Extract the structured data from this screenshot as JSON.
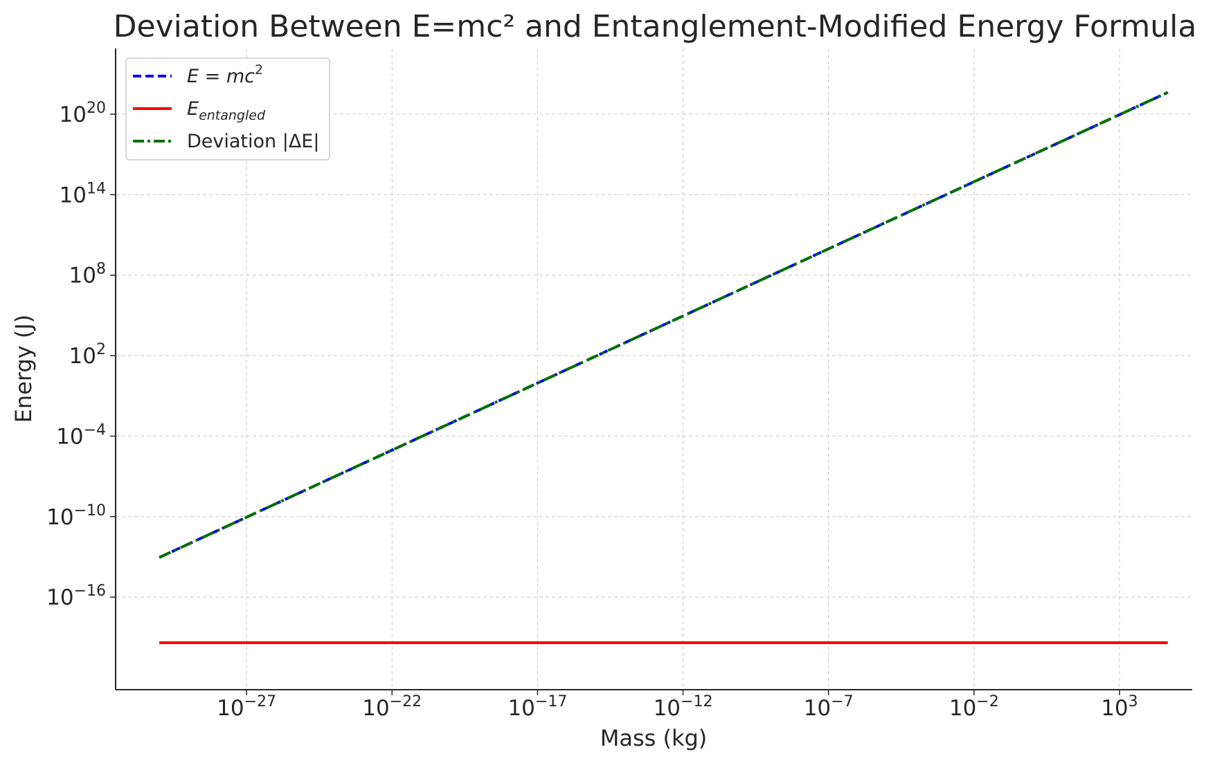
{
  "chart_data": {
    "type": "line",
    "title": "Deviation Between E=mc² and Entanglement-Modified Energy Formula",
    "xlabel": "Mass (kg)",
    "ylabel": "Energy (J)",
    "xscale": "log",
    "yscale": "log",
    "xlim": [
      -31.5,
      5.5
    ],
    "ylim": [
      -22.9,
      24.9
    ],
    "x_ticks": [
      {
        "base": "10",
        "exp": "−27",
        "value": -27
      },
      {
        "base": "10",
        "exp": "−22",
        "value": -22
      },
      {
        "base": "10",
        "exp": "−17",
        "value": -17
      },
      {
        "base": "10",
        "exp": "−12",
        "value": -12
      },
      {
        "base": "10",
        "exp": "−7",
        "value": -7
      },
      {
        "base": "10",
        "exp": "−2",
        "value": -2
      },
      {
        "base": "10",
        "exp": "3",
        "value": 3
      }
    ],
    "y_ticks": [
      {
        "base": "10",
        "exp": "20",
        "value": 20
      },
      {
        "base": "10",
        "exp": "14",
        "value": 14
      },
      {
        "base": "10",
        "exp": "8",
        "value": 8
      },
      {
        "base": "10",
        "exp": "2",
        "value": 2
      },
      {
        "base": "10",
        "exp": "−4",
        "value": -4
      },
      {
        "base": "10",
        "exp": "−10",
        "value": -10
      },
      {
        "base": "10",
        "exp": "−16",
        "value": -16
      }
    ],
    "grid": true,
    "legend_position": "top-left",
    "series": [
      {
        "name": "E = mc",
        "name_sup": "2",
        "color": "#0000ff",
        "style": "dashed",
        "points": [
          {
            "x": 1e-30,
            "y": 9e-14
          },
          {
            "x": 46000.0,
            "y": 4.2e+21
          }
        ]
      },
      {
        "name": "E",
        "name_sub": "entangled",
        "color": "#ff0000",
        "style": "solid",
        "points": [
          {
            "x": 1e-30,
            "y": 4e-20
          },
          {
            "x": 46000.0,
            "y": 4e-20
          }
        ]
      },
      {
        "name": "Deviation |ΔE|",
        "color": "#007000",
        "style": "dashdot",
        "points": [
          {
            "x": 1e-30,
            "y": 9e-14
          },
          {
            "x": 46000.0,
            "y": 4.2e+21
          }
        ]
      }
    ]
  }
}
